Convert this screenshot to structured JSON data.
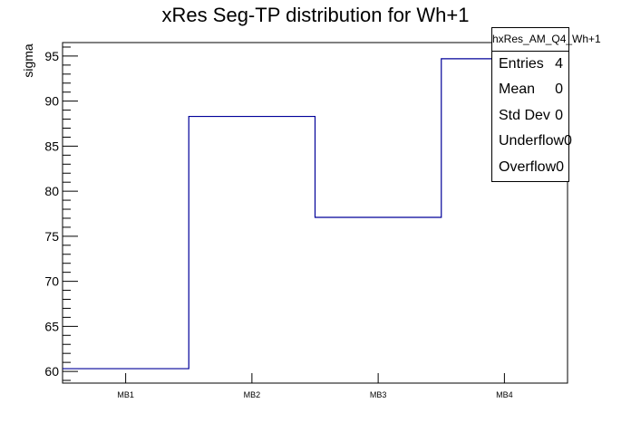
{
  "chart_data": {
    "type": "bar",
    "style": "step-histogram",
    "title": "xRes Seg-TP distribution for Wh+1",
    "xlabel": "",
    "ylabel": "sigma",
    "categories": [
      "MB1",
      "MB2",
      "MB3",
      "MB4"
    ],
    "values": [
      60.3,
      88.3,
      77.1,
      94.7
    ],
    "ylim": [
      58.7,
      96.5
    ],
    "yticks": [
      60,
      65,
      70,
      75,
      80,
      85,
      90,
      95
    ],
    "grid": false,
    "line_color": "#000099",
    "legend": "none",
    "stats_box": {
      "title": "hxRes_AM_Q4_Wh+1",
      "placement": "top-right",
      "rows": [
        {
          "label": "Entries",
          "value": "4"
        },
        {
          "label": "Mean",
          "value": "0"
        },
        {
          "label": "Std Dev",
          "value": "0"
        },
        {
          "label": "Underflow",
          "value": "0"
        },
        {
          "label": "Overflow",
          "value": "0"
        }
      ]
    }
  }
}
